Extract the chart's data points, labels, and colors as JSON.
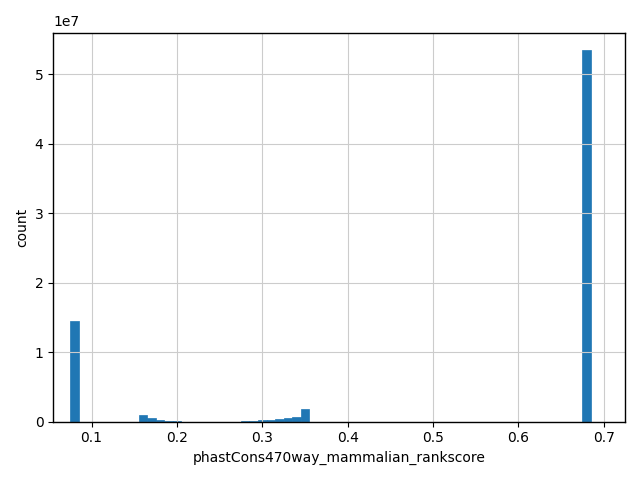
{
  "xlabel": "phastCons470way_mammalian_rankscore",
  "ylabel": "count",
  "bar_color": "#2077b4",
  "background_color": "#ffffff",
  "grid": true,
  "xlim": [
    0.055,
    0.725
  ],
  "ylim": [
    0,
    56000000.0
  ],
  "bins": [
    0.065,
    0.075,
    0.085,
    0.095,
    0.155,
    0.165,
    0.175,
    0.185,
    0.195,
    0.205,
    0.215,
    0.265,
    0.275,
    0.285,
    0.295,
    0.305,
    0.315,
    0.325,
    0.335,
    0.345,
    0.355,
    0.365,
    0.655,
    0.665,
    0.675,
    0.685,
    0.695
  ],
  "heights": [
    0,
    14500000,
    0,
    0,
    900000,
    500000,
    200000,
    100000,
    100000,
    0,
    0,
    0,
    100000,
    150000,
    200000,
    200000,
    300000,
    500000,
    700000,
    1750000,
    0,
    0,
    0,
    0,
    53500000,
    0,
    0
  ],
  "xticks": [
    0.1,
    0.2,
    0.3,
    0.4,
    0.5,
    0.6,
    0.7
  ],
  "ytick_values": [
    0,
    10000000,
    20000000,
    30000000,
    40000000,
    50000000
  ],
  "ytick_labels": [
    "0",
    "1",
    "2",
    "3",
    "4",
    "5"
  ],
  "sci_label": "1e7"
}
